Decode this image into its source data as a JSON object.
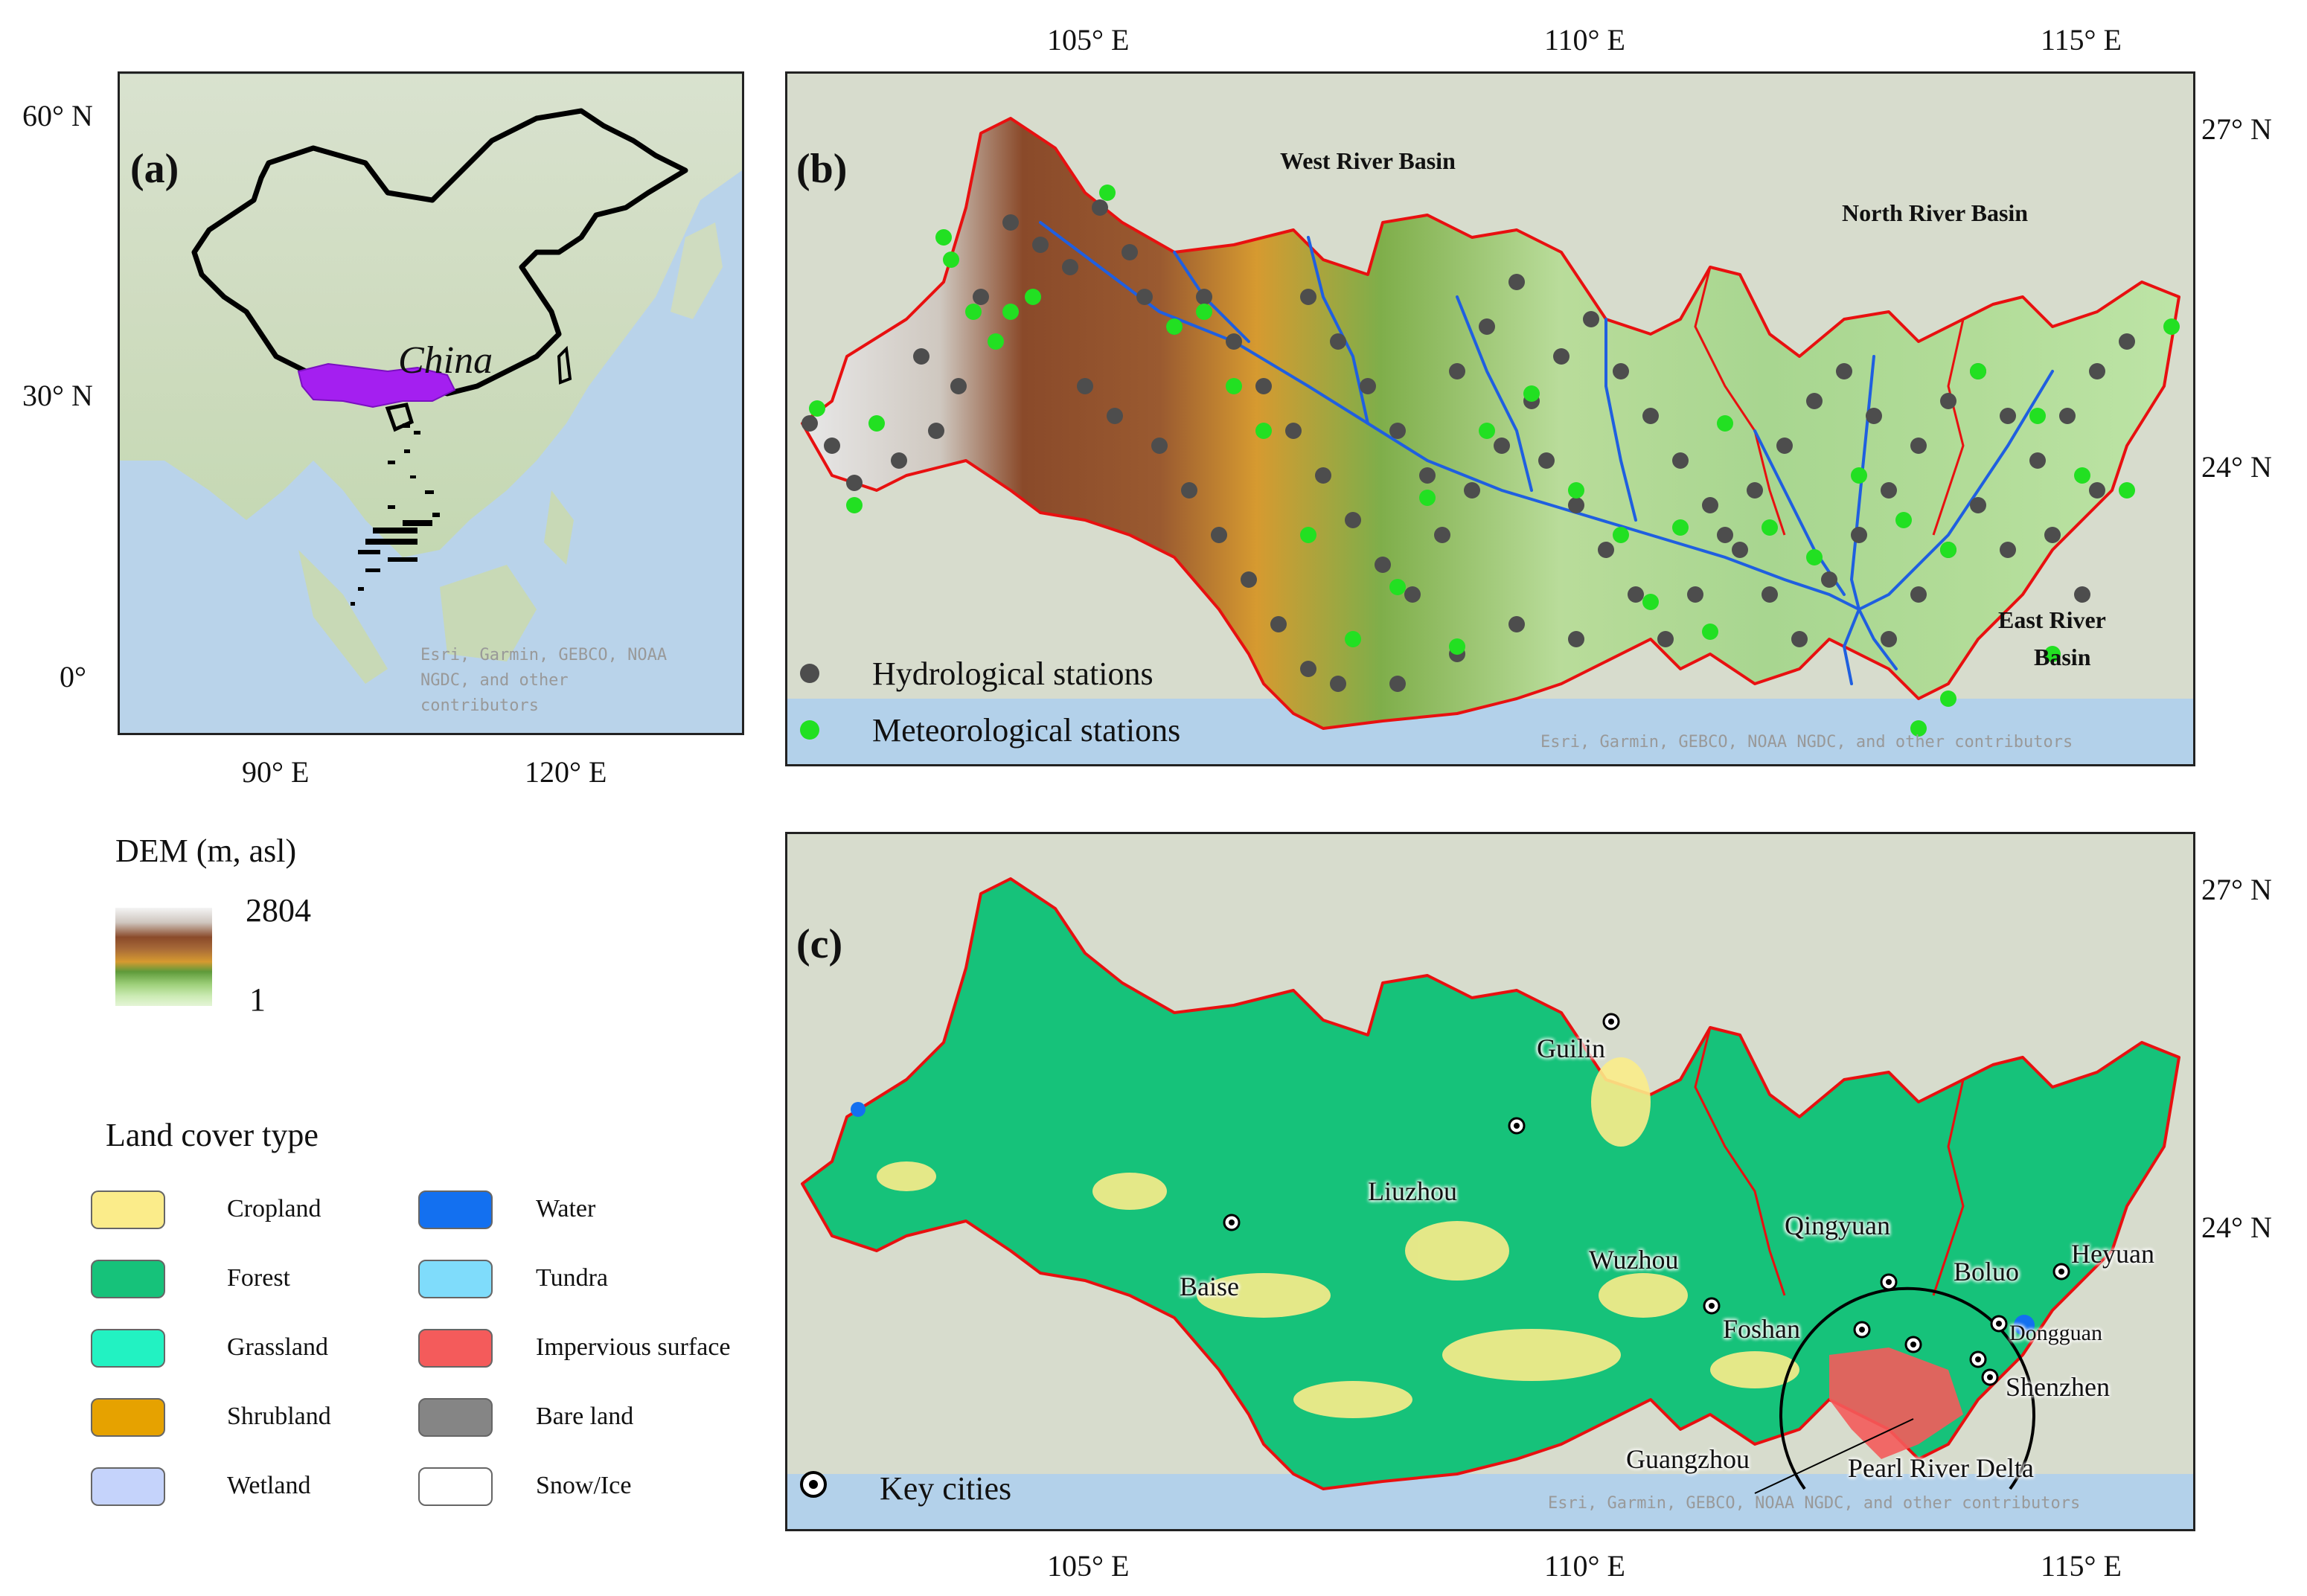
{
  "panel_a": {
    "letter": "(a)",
    "region_label": "China",
    "attribution_lines": [
      "Esri, Garmin, GEBCO, NOAA",
      "NGDC, and other",
      "contributors"
    ],
    "lat_ticks": [
      "60° N",
      "30° N",
      "0°"
    ],
    "lon_ticks": [
      "90° E",
      "120° E"
    ]
  },
  "panel_b": {
    "letter": "(b)",
    "basins": {
      "west": "West River Basin",
      "north": "North River Basin",
      "east_line1": "East River",
      "east_line2": "Basin"
    },
    "legend": {
      "hydro": "Hydrological stations",
      "meteo": "Meteorological stations"
    },
    "attribution": "Esri, Garmin, GEBCO, NOAA NGDC, and other contributors",
    "colors": {
      "hydro": "#4d4d4d",
      "meteo": "#22e022",
      "rivers": "#1f5fe0",
      "boundary": "#e01010"
    }
  },
  "panel_c": {
    "letter": "(c)",
    "cities": [
      "Guilin",
      "Liuzhou",
      "Baise",
      "Wuzhou",
      "Qingyuan",
      "Boluo",
      "Heyuan",
      "Foshan",
      "Dongguan",
      "Shenzhen",
      "Guangzhou"
    ],
    "delta_label": "Pearl River Delta",
    "legend_key_cities": "Key cities",
    "attribution": "Esri, Garmin, GEBCO, NOAA NGDC, and other contributors"
  },
  "axes_bc": {
    "lon_ticks": [
      "105° E",
      "110° E",
      "115° E"
    ],
    "lat_ticks": [
      "27° N",
      "24° N"
    ]
  },
  "dem_legend": {
    "title": "DEM (m, asl)",
    "max": "2804",
    "min": "1"
  },
  "landcover_legend": {
    "title": "Land cover type",
    "items": [
      {
        "label": "Cropland",
        "color": "#fbec8a"
      },
      {
        "label": "Forest",
        "color": "#16c27a"
      },
      {
        "label": "Grassland",
        "color": "#22f2c2"
      },
      {
        "label": "Shrubland",
        "color": "#e6a200"
      },
      {
        "label": "Wetland",
        "color": "#c5d3fb"
      },
      {
        "label": "Water",
        "color": "#1370f0"
      },
      {
        "label": "Tundra",
        "color": "#7fdcfb"
      },
      {
        "label": "Impervious surface",
        "color": "#f45b5b"
      },
      {
        "label": "Bare land",
        "color": "#858585"
      },
      {
        "label": "Snow/Ice",
        "color": "#ffffff"
      }
    ]
  }
}
